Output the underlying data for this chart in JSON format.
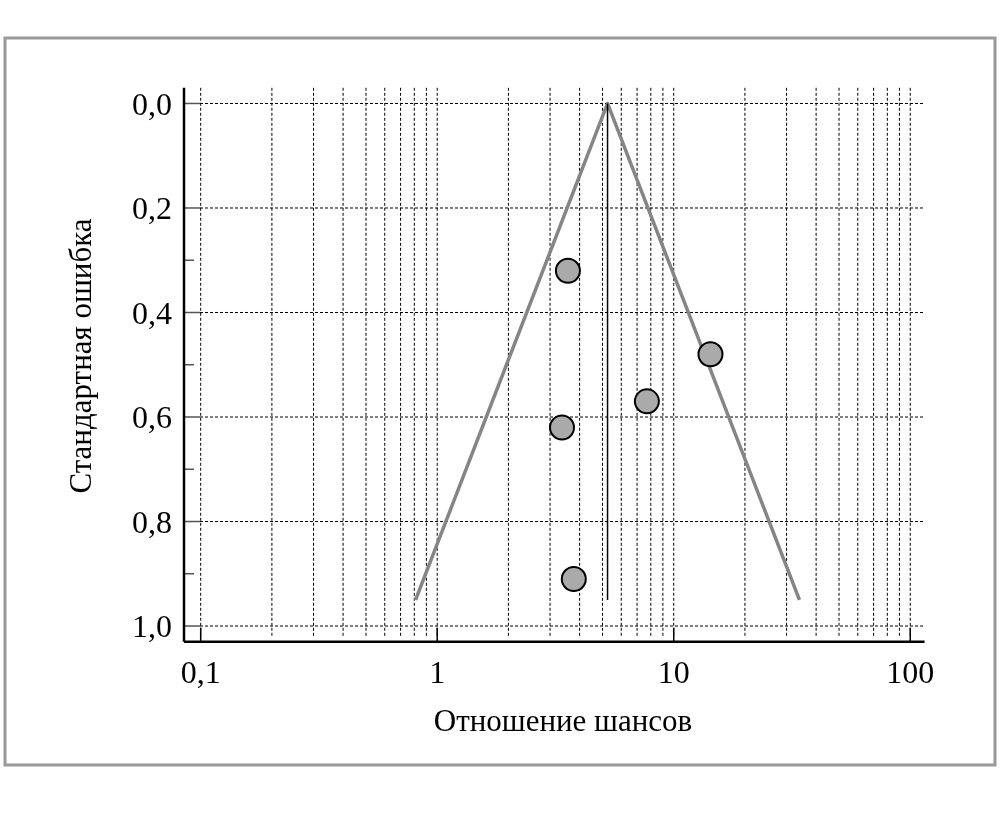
{
  "chart_data": {
    "type": "scatter",
    "xlabel": "Отношение шансов",
    "ylabel": "Стандартная ошибка",
    "log": "x",
    "xlim": [
      0.085,
      115
    ],
    "xticks": [
      {
        "value": 0.1,
        "label": "0,1"
      },
      {
        "value": 0.2,
        "label": null
      },
      {
        "value": 0.3,
        "label": null
      },
      {
        "value": 0.4,
        "label": null
      },
      {
        "value": 0.5,
        "label": null
      },
      {
        "value": 0.6,
        "label": null
      },
      {
        "value": 0.7,
        "label": null
      },
      {
        "value": 0.8,
        "label": null
      },
      {
        "value": 0.9,
        "label": null
      },
      1,
      {
        "value": 2,
        "label": null
      },
      {
        "value": 3,
        "label": null
      },
      {
        "value": 4,
        "label": null
      },
      {
        "value": 5,
        "label": null
      },
      {
        "value": 6,
        "label": null
      },
      {
        "value": 7,
        "label": null
      },
      {
        "value": 8,
        "label": null
      },
      {
        "value": 9,
        "label": null
      },
      10,
      {
        "value": 20,
        "label": null
      },
      {
        "value": 30,
        "label": null
      },
      {
        "value": 40,
        "label": null
      },
      {
        "value": 50,
        "label": null
      },
      {
        "value": 60,
        "label": null
      },
      {
        "value": 70,
        "label": null
      },
      {
        "value": 80,
        "label": null
      },
      {
        "value": 90,
        "label": null
      },
      100
    ],
    "ylim": [
      1.03,
      -0.03
    ],
    "yticks": [
      {
        "value": 0,
        "label": "0,0"
      },
      {
        "value": 0.2,
        "label": "0,2"
      },
      {
        "value": 0.3,
        "label": null
      },
      {
        "value": 0.4,
        "label": "0,4"
      },
      {
        "value": 0.5,
        "label": null
      },
      {
        "value": 0.6,
        "label": "0,6"
      },
      {
        "value": 0.7,
        "label": null
      },
      {
        "value": 0.8,
        "label": "0,8"
      },
      {
        "value": 0.9,
        "label": null
      },
      {
        "value": 1,
        "label": "1,0"
      }
    ],
    "grid": true,
    "series": [
      {
        "type": "line",
        "color": "#858585",
        "x": [
          0.81,
          5.25,
          34
        ],
        "values": [
          0.95,
          0,
          0.95
        ]
      },
      {
        "type": "line",
        "color": "#000000",
        "x": [
          5.25,
          5.25
        ],
        "values": [
          0,
          0.95
        ]
      },
      {
        "color": "#aaaaaa",
        "marker": "circle",
        "x": [
          3.57,
          14.3,
          7.7,
          3.37,
          3.78
        ],
        "values": [
          0.32,
          0.48,
          0.57,
          0.62,
          0.91
        ]
      }
    ]
  }
}
